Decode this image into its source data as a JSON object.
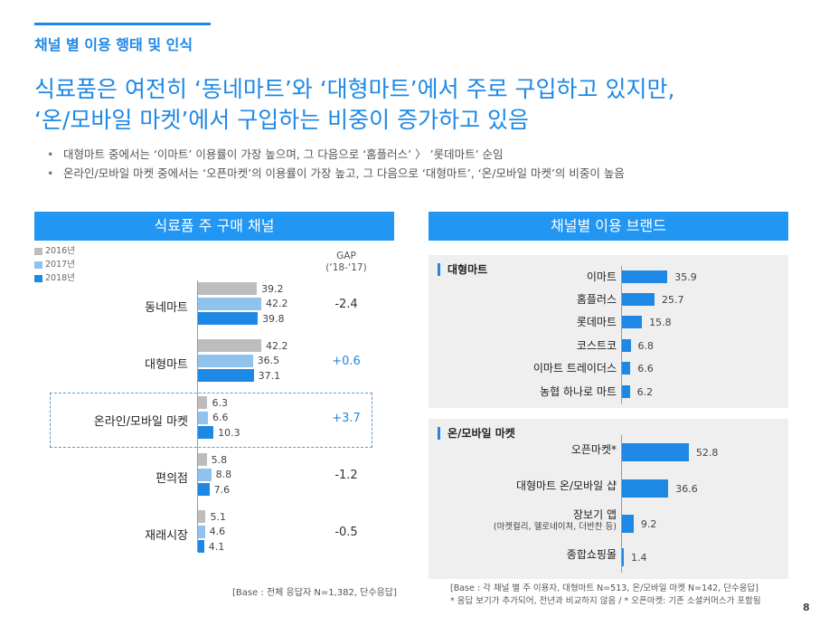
{
  "section_title": "채널 별 이용 행태 및 인식",
  "headline": [
    "식료품은 여전히 ‘동네마트’와 ‘대형마트’에서 주로 구입하고 있지만,",
    "‘온/모바일 마켓’에서 구입하는 비중이 증가하고 있음"
  ],
  "bullets": [
    "대형마트 중에서는 ‘이마트’ 이용률이 가장 높으며, 그 다음으로 ‘홈플러스’ 〉 ’롯데마트’ 순임",
    "온라인/모바일 마켓 중에서는 ‘오픈마켓’의 이용률이 가장 높고, 그 다음으로 ‘대형마트’, ‘온/모바일 마켓’의 비중이 높음"
  ],
  "left_panel": {
    "title": "식료품 주 구매 채널",
    "gap_header": [
      "GAP",
      "(‘18-‘17)"
    ],
    "base": "[Base : 전체 응답자 N=1,382, 단수응답]"
  },
  "right_panel": {
    "title": "채널별 이용 브랜드",
    "base": [
      "[Base : 각 채널 별 주 이용자, 대형마트 N=513, 온/모바일 마켓 N=142, 단수응답]",
      "* 응답 보기가 추가되어, 전년과 비교하지 않음 / * 오픈마켓: 기존 소셜커머스가 포함됨"
    ]
  },
  "colors": {
    "accent": "#1e88e5",
    "y2016": "#bdbdbd",
    "y2017": "#90c2ee",
    "y2018": "#1e88e5"
  },
  "chart_data": [
    {
      "type": "bar",
      "orientation": "horizontal",
      "title": "식료품 주 구매 채널",
      "categories": [
        "동네마트",
        "대형마트",
        "온라인/모바일 마켓",
        "편의점",
        "재래시장"
      ],
      "series": [
        {
          "name": "2016년",
          "values": [
            39.2,
            42.2,
            6.3,
            5.8,
            5.1
          ]
        },
        {
          "name": "2017년",
          "values": [
            42.2,
            36.5,
            6.6,
            8.8,
            4.6
          ]
        },
        {
          "name": "2018년",
          "values": [
            39.8,
            37.1,
            10.3,
            7.6,
            4.1
          ]
        }
      ],
      "gap": [
        "-2.4",
        "+0.6",
        "+3.7",
        "-1.2",
        "-0.5"
      ],
      "legend": "top-left"
    },
    {
      "type": "bar",
      "orientation": "horizontal",
      "title": "대형마트",
      "categories": [
        "이마트",
        "홈플러스",
        "롯데마트",
        "코스트코",
        "이마트 트레이더스",
        "농협 하나로 마트"
      ],
      "values": [
        35.9,
        25.7,
        15.8,
        6.8,
        6.6,
        6.2
      ]
    },
    {
      "type": "bar",
      "orientation": "horizontal",
      "title": "온/모바일 마켓",
      "categories": [
        "오픈마켓*",
        "대형마트 온/모바일 샵",
        "장보기 앱",
        "종합쇼핑몰"
      ],
      "subtitles": [
        "",
        "",
        "(마켓컬리, 헬로네이쳐, 더반찬 등)",
        ""
      ],
      "values": [
        52.8,
        36.6,
        9.2,
        1.4
      ]
    }
  ],
  "page_number": "8"
}
